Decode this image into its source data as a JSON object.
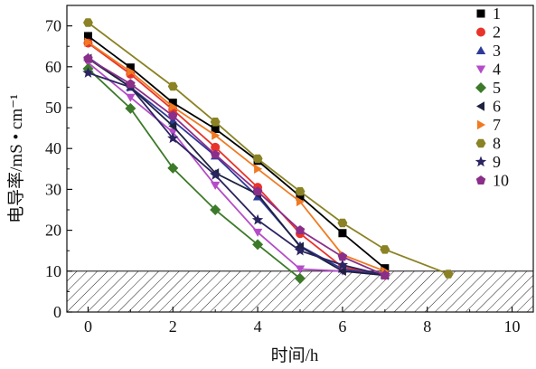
{
  "chart_data": {
    "type": "line",
    "title": "",
    "xlabel": "时间/h",
    "ylabel": "电导率/mS • cm⁻¹",
    "xlim": [
      -0.5,
      10.5
    ],
    "ylim": [
      0,
      75
    ],
    "xticks": [
      0,
      2,
      4,
      6,
      8,
      10
    ],
    "yticks": [
      0,
      10,
      20,
      30,
      40,
      50,
      60,
      70
    ],
    "xtick_labels": [
      "0",
      "2",
      "4",
      "6",
      "8",
      "10"
    ],
    "ytick_labels": [
      "0",
      "10",
      "20",
      "30",
      "40",
      "50",
      "60",
      "70"
    ],
    "grid": false,
    "legend": "top-right",
    "threshold_band": {
      "from": 0,
      "to": 10,
      "label": "",
      "pattern": "diagonal-hatch"
    },
    "series": [
      {
        "name": "1",
        "color": "#000000",
        "marker": "square",
        "x": [
          0,
          1,
          2,
          3,
          4,
          5,
          6,
          7
        ],
        "y": [
          67.5,
          59.8,
          51.2,
          44.8,
          37.0,
          28.3,
          19.3,
          10.7
        ]
      },
      {
        "name": "2",
        "color": "#e8332a",
        "marker": "circle",
        "x": [
          0,
          1,
          2,
          3,
          4,
          5,
          6,
          7
        ],
        "y": [
          65.8,
          58.2,
          49.5,
          40.3,
          30.5,
          19.2,
          11.0,
          9.0
        ]
      },
      {
        "name": "3",
        "color": "#2e3a9a",
        "marker": "triangle-up",
        "x": [
          0,
          1,
          2,
          3,
          4,
          5,
          6,
          7
        ],
        "y": [
          62.3,
          55.0,
          46.8,
          38.2,
          28.2,
          16.2,
          10.5,
          9.0
        ]
      },
      {
        "name": "4",
        "color": "#b44cc8",
        "marker": "triangle-down",
        "x": [
          0,
          1,
          2,
          3,
          4,
          5,
          6,
          7
        ],
        "y": [
          61.0,
          52.5,
          44.0,
          31.0,
          19.5,
          10.5,
          10.0,
          9.0
        ]
      },
      {
        "name": "5",
        "color": "#3c7a2a",
        "marker": "diamond",
        "x": [
          0,
          1,
          2,
          3,
          4,
          5
        ],
        "y": [
          59.5,
          49.8,
          35.2,
          25.0,
          16.5,
          8.2
        ]
      },
      {
        "name": "6",
        "color": "#1e2240",
        "marker": "triangle-left",
        "x": [
          0,
          1,
          2,
          3,
          4,
          5,
          6,
          7
        ],
        "y": [
          62.0,
          55.0,
          45.5,
          34.0,
          28.8,
          16.0,
          10.0,
          9.0
        ]
      },
      {
        "name": "7",
        "color": "#f07a22",
        "marker": "triangle-right",
        "x": [
          0,
          1,
          2,
          3,
          4,
          5,
          6,
          7
        ],
        "y": [
          66.0,
          58.8,
          50.2,
          43.2,
          35.0,
          27.0,
          14.0,
          10.0
        ]
      },
      {
        "name": "8",
        "color": "#8a8224",
        "marker": "hexagon",
        "x": [
          0,
          2,
          3,
          4,
          5,
          6,
          7,
          8.5
        ],
        "y": [
          70.8,
          55.2,
          46.5,
          37.5,
          29.5,
          21.8,
          15.3,
          9.3
        ]
      },
      {
        "name": "9",
        "color": "#2a2460",
        "marker": "star",
        "x": [
          0,
          1,
          2,
          3,
          4,
          5,
          6,
          7
        ],
        "y": [
          58.5,
          55.0,
          42.5,
          33.5,
          22.5,
          15.0,
          11.5,
          9.0
        ]
      },
      {
        "name": "10",
        "color": "#8a2e8a",
        "marker": "pentagon",
        "x": [
          0,
          1,
          2,
          3,
          4,
          5,
          6,
          7
        ],
        "y": [
          62.0,
          55.8,
          48.0,
          38.5,
          29.5,
          20.0,
          13.5,
          9.0
        ]
      }
    ]
  }
}
